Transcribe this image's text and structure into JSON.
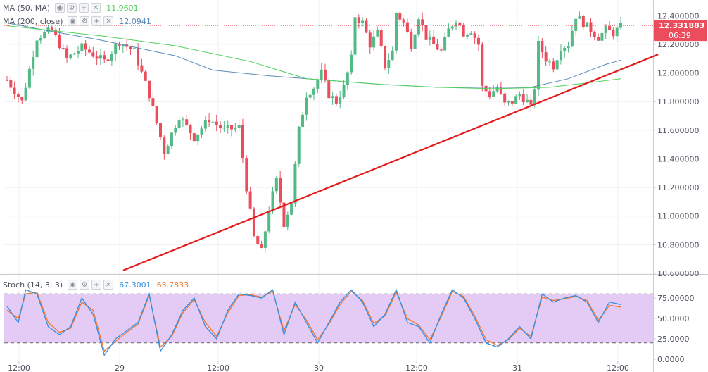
{
  "colors": {
    "up": "#53b987",
    "down": "#eb4d5c",
    "ma50": "#4ed25a",
    "ma200": "#5b8ab8",
    "trend": "#e31b1b",
    "stoch_k": "#2f8fe0",
    "stoch_d": "#f0772a",
    "stoch_band": "#e4cbf6",
    "price_tag": "#eb4d5c"
  },
  "legends": {
    "ma50": {
      "name": "MA (50, MA)",
      "value": "11.9601"
    },
    "ma200": {
      "name": "MA (200, close)",
      "value": "12.0941"
    },
    "stoch": {
      "name": "Stoch (14, 3, 3)",
      "k": "67.3001",
      "d": "63.7833"
    }
  },
  "legend_icons": [
    "eye-icon",
    "gear-icon",
    "plus-icon",
    "close-icon"
  ],
  "price_tag": {
    "price": "12.331883",
    "countdown": "06:39"
  },
  "chart_data": [
    {
      "type": "candlestick",
      "x_ticks": [
        "12:00",
        "29",
        "12:00",
        "30",
        "12:00",
        "31",
        "12:00"
      ],
      "y_ticks": [
        "12.400000",
        "12.200000",
        "12.000000",
        "11.800000",
        "11.600000",
        "11.400000",
        "11.200000",
        "11.000000",
        "10.800000",
        "10.600000"
      ],
      "ylim": [
        10.6,
        12.5
      ],
      "last_price": 12.331883,
      "price_path": [
        [
          0,
          11.95
        ],
        [
          4,
          11.8
        ],
        [
          8,
          12.25
        ],
        [
          12,
          12.3
        ],
        [
          16,
          12.1
        ],
        [
          20,
          12.18
        ],
        [
          26,
          12.08
        ],
        [
          30,
          12.22
        ],
        [
          34,
          12.15
        ],
        [
          38,
          11.85
        ],
        [
          42,
          11.45
        ],
        [
          46,
          11.7
        ],
        [
          50,
          11.55
        ],
        [
          54,
          11.68
        ],
        [
          58,
          11.6
        ],
        [
          62,
          11.62
        ],
        [
          64,
          11.2
        ],
        [
          66,
          10.85
        ],
        [
          68,
          10.75
        ],
        [
          70,
          11.05
        ],
        [
          72,
          11.25
        ],
        [
          74,
          10.95
        ],
        [
          76,
          11.1
        ],
        [
          78,
          11.6
        ],
        [
          80,
          11.85
        ],
        [
          82,
          11.9
        ],
        [
          84,
          12.0
        ],
        [
          86,
          11.85
        ],
        [
          88,
          11.8
        ],
        [
          90,
          11.9
        ],
        [
          92,
          12.1
        ],
        [
          93,
          12.4
        ],
        [
          95,
          12.35
        ],
        [
          97,
          12.2
        ],
        [
          99,
          12.28
        ],
        [
          101,
          12.05
        ],
        [
          103,
          12.15
        ],
        [
          104,
          12.42
        ],
        [
          106,
          12.35
        ],
        [
          108,
          12.2
        ],
        [
          110,
          12.4
        ],
        [
          112,
          12.25
        ],
        [
          114,
          12.2
        ],
        [
          116,
          12.15
        ],
        [
          118,
          12.3
        ],
        [
          120,
          12.38
        ],
        [
          122,
          12.28
        ],
        [
          124,
          12.3
        ],
        [
          126,
          12.2
        ],
        [
          127,
          11.9
        ],
        [
          129,
          11.85
        ],
        [
          131,
          11.9
        ],
        [
          133,
          11.78
        ],
        [
          135,
          11.8
        ],
        [
          137,
          11.85
        ],
        [
          139,
          11.8
        ],
        [
          140,
          11.75
        ],
        [
          141,
          11.9
        ],
        [
          142,
          12.2
        ],
        [
          144,
          12.1
        ],
        [
          146,
          12.05
        ],
        [
          148,
          12.18
        ],
        [
          150,
          12.2
        ],
        [
          152,
          12.4
        ],
        [
          154,
          12.35
        ],
        [
          156,
          12.3
        ],
        [
          158,
          12.25
        ],
        [
          160,
          12.3
        ],
        [
          162,
          12.28
        ],
        [
          164,
          12.32
        ]
      ],
      "ma50": [
        [
          0,
          12.33
        ],
        [
          25,
          12.26
        ],
        [
          45,
          12.19
        ],
        [
          65,
          12.08
        ],
        [
          80,
          11.96
        ],
        [
          100,
          11.92
        ],
        [
          115,
          11.9
        ],
        [
          130,
          11.89
        ],
        [
          145,
          11.9
        ],
        [
          155,
          11.93
        ],
        [
          164,
          11.96
        ]
      ],
      "ma200": [
        [
          0,
          12.35
        ],
        [
          10,
          12.3
        ],
        [
          25,
          12.23
        ],
        [
          45,
          12.12
        ],
        [
          55,
          12.02
        ],
        [
          70,
          11.98
        ],
        [
          85,
          11.95
        ],
        [
          100,
          11.92
        ],
        [
          115,
          11.9
        ],
        [
          130,
          11.9
        ],
        [
          140,
          11.9
        ],
        [
          150,
          11.96
        ],
        [
          160,
          12.06
        ],
        [
          164,
          12.09
        ]
      ],
      "trendline": [
        [
          31,
          10.62
        ],
        [
          174,
          12.13
        ]
      ],
      "n_bars": 165
    },
    {
      "type": "line",
      "name": "Stoch (14, 3, 3)",
      "y_ticks": [
        "75.00000",
        "50.0000",
        "25.0000",
        "0.0000"
      ],
      "ylim": [
        0,
        100
      ],
      "band": [
        20,
        80
      ],
      "k_path": [
        [
          0,
          65
        ],
        [
          3,
          45
        ],
        [
          5,
          85
        ],
        [
          8,
          80
        ],
        [
          11,
          40
        ],
        [
          14,
          30
        ],
        [
          17,
          40
        ],
        [
          20,
          75
        ],
        [
          23,
          55
        ],
        [
          26,
          5
        ],
        [
          29,
          25
        ],
        [
          32,
          35
        ],
        [
          35,
          45
        ],
        [
          38,
          80
        ],
        [
          41,
          10
        ],
        [
          44,
          30
        ],
        [
          47,
          60
        ],
        [
          50,
          75
        ],
        [
          53,
          40
        ],
        [
          56,
          25
        ],
        [
          59,
          60
        ],
        [
          62,
          80
        ],
        [
          65,
          78
        ],
        [
          68,
          75
        ],
        [
          71,
          85
        ],
        [
          74,
          30
        ],
        [
          77,
          70
        ],
        [
          80,
          45
        ],
        [
          83,
          20
        ],
        [
          86,
          45
        ],
        [
          89,
          70
        ],
        [
          92,
          85
        ],
        [
          95,
          70
        ],
        [
          98,
          40
        ],
        [
          101,
          55
        ],
        [
          104,
          85
        ],
        [
          107,
          45
        ],
        [
          110,
          40
        ],
        [
          113,
          20
        ],
        [
          116,
          55
        ],
        [
          119,
          85
        ],
        [
          122,
          75
        ],
        [
          125,
          50
        ],
        [
          128,
          20
        ],
        [
          131,
          15
        ],
        [
          134,
          25
        ],
        [
          137,
          40
        ],
        [
          140,
          25
        ],
        [
          143,
          80
        ],
        [
          146,
          70
        ],
        [
          149,
          75
        ],
        [
          152,
          78
        ],
        [
          155,
          70
        ],
        [
          158,
          45
        ],
        [
          161,
          70
        ],
        [
          164,
          67
        ]
      ],
      "d_path": [
        [
          0,
          60
        ],
        [
          3,
          50
        ],
        [
          5,
          80
        ],
        [
          8,
          82
        ],
        [
          11,
          45
        ],
        [
          14,
          33
        ],
        [
          17,
          38
        ],
        [
          20,
          70
        ],
        [
          23,
          60
        ],
        [
          26,
          10
        ],
        [
          29,
          22
        ],
        [
          32,
          33
        ],
        [
          35,
          43
        ],
        [
          38,
          78
        ],
        [
          41,
          15
        ],
        [
          44,
          28
        ],
        [
          47,
          57
        ],
        [
          50,
          73
        ],
        [
          53,
          45
        ],
        [
          56,
          28
        ],
        [
          59,
          57
        ],
        [
          62,
          78
        ],
        [
          65,
          79
        ],
        [
          68,
          76
        ],
        [
          71,
          83
        ],
        [
          74,
          35
        ],
        [
          77,
          67
        ],
        [
          80,
          48
        ],
        [
          83,
          24
        ],
        [
          86,
          43
        ],
        [
          89,
          67
        ],
        [
          92,
          83
        ],
        [
          95,
          72
        ],
        [
          98,
          44
        ],
        [
          101,
          53
        ],
        [
          104,
          82
        ],
        [
          107,
          50
        ],
        [
          110,
          42
        ],
        [
          113,
          24
        ],
        [
          116,
          52
        ],
        [
          119,
          83
        ],
        [
          122,
          77
        ],
        [
          125,
          53
        ],
        [
          128,
          24
        ],
        [
          131,
          17
        ],
        [
          134,
          24
        ],
        [
          137,
          38
        ],
        [
          140,
          28
        ],
        [
          143,
          76
        ],
        [
          146,
          72
        ],
        [
          149,
          74
        ],
        [
          152,
          77
        ],
        [
          155,
          72
        ],
        [
          158,
          48
        ],
        [
          161,
          66
        ],
        [
          164,
          64
        ]
      ],
      "k_last": 67.3001,
      "d_last": 63.7833
    }
  ]
}
